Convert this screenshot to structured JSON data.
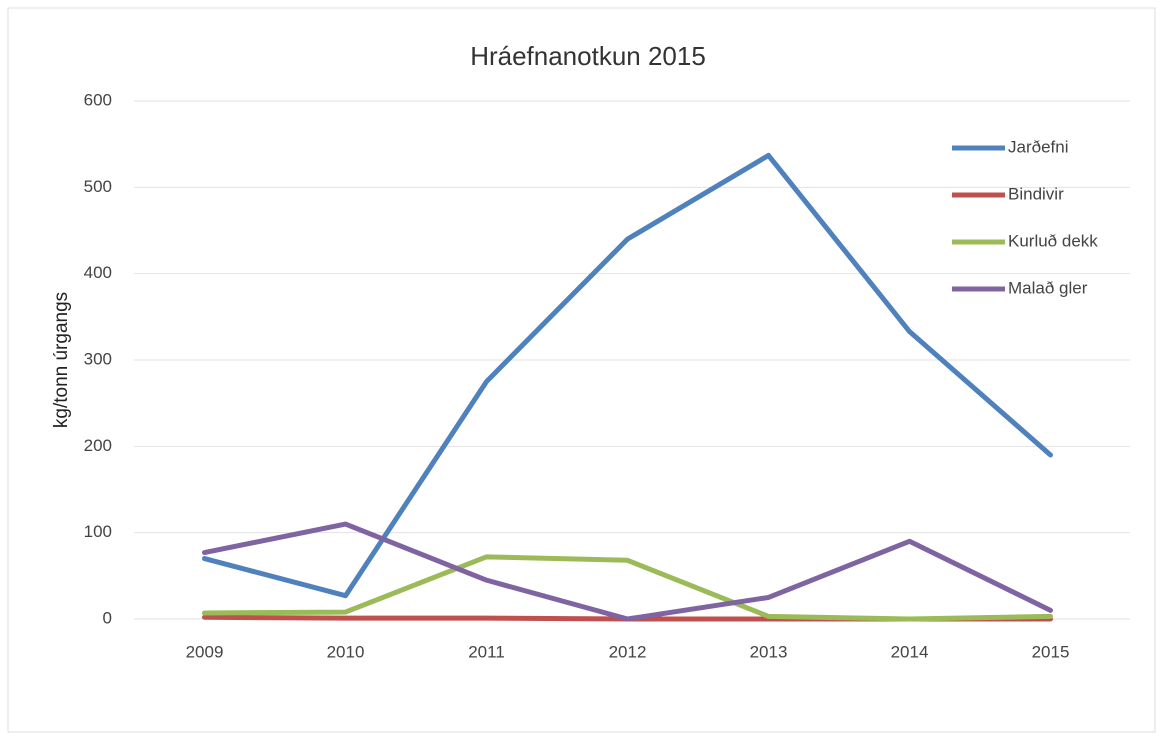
{
  "chart_data": {
    "type": "line",
    "title": "Hráefnanotkun 2015",
    "y_label": "kg/tonn úrgangs",
    "categories": [
      "2009",
      "2010",
      "2011",
      "2012",
      "2013",
      "2014",
      "2015"
    ],
    "series": [
      {
        "name": "Jarðefni",
        "color": "#4f81bd",
        "values": [
          70,
          27,
          275,
          440,
          537,
          333,
          190
        ]
      },
      {
        "name": "Bindivir",
        "color": "#c0504d",
        "values": [
          2,
          1,
          1,
          0,
          0,
          0,
          0
        ]
      },
      {
        "name": "Kurluð dekk",
        "color": "#9bbb59",
        "values": [
          7,
          8,
          72,
          68,
          3,
          0,
          3
        ]
      },
      {
        "name": "Malað gler",
        "color": "#8064a2",
        "values": [
          77,
          110,
          45,
          0,
          25,
          90,
          10
        ]
      }
    ],
    "ylim": [
      0,
      600
    ],
    "yticks": [
      0,
      100,
      200,
      300,
      400,
      500,
      600
    ],
    "grid": true,
    "legend": "right"
  }
}
